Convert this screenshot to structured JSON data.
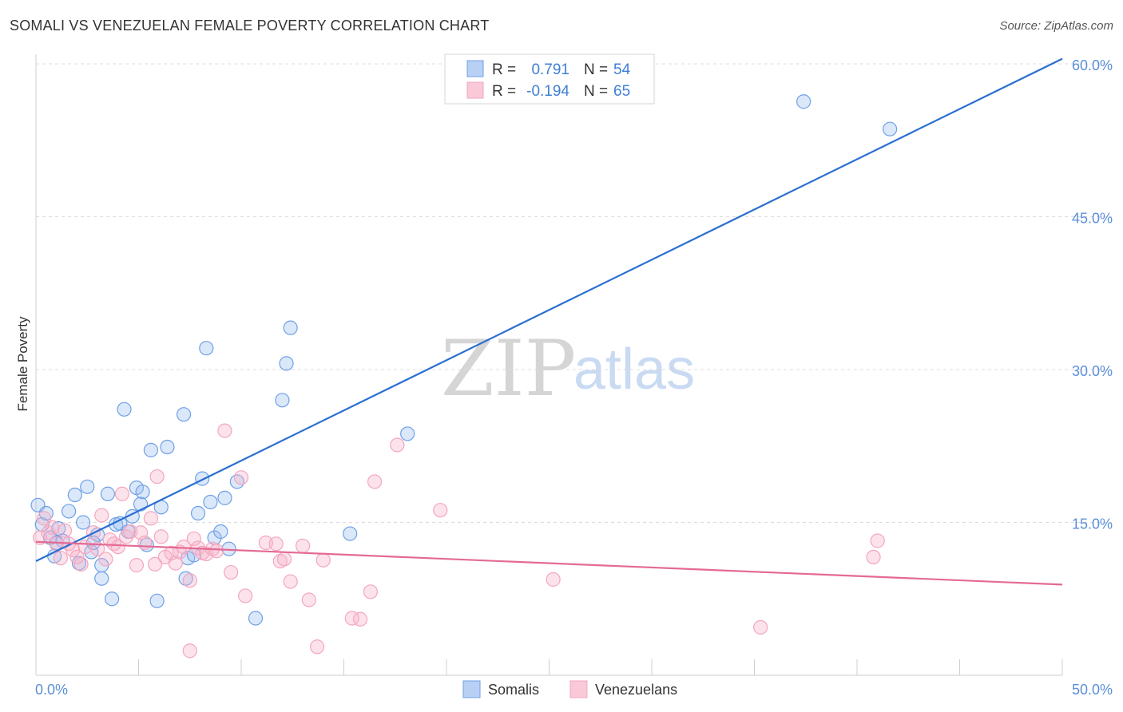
{
  "title": "SOMALI VS VENEZUELAN FEMALE POVERTY CORRELATION CHART",
  "source": "Source: ZipAtlas.com",
  "watermark": {
    "zip": "ZIP",
    "atlas": "atlas"
  },
  "chart_data": {
    "type": "scatter",
    "ylabel": "Female Poverty",
    "xlabel": "",
    "xlim": [
      0,
      50
    ],
    "ylim": [
      0,
      60
    ],
    "x_tick_labels": {
      "min": "0.0%",
      "max": "50.0%"
    },
    "y_tick_labels": [
      "15.0%",
      "30.0%",
      "45.0%",
      "60.0%"
    ],
    "y_tick_values": [
      15,
      30,
      45,
      60
    ],
    "x_minor_ticks": [
      0,
      5,
      10,
      15,
      20,
      25,
      30,
      35,
      40,
      45,
      50
    ],
    "legend": {
      "rows": [
        {
          "r_label": "R =",
          "r_value": "0.791",
          "n_label": "N =",
          "n_value": "54"
        },
        {
          "r_label": "R =",
          "r_value": "-0.194",
          "n_label": "N =",
          "n_value": "65"
        }
      ]
    },
    "series": [
      {
        "name": "Somalis",
        "color": "#6fa0e6",
        "line_color": "#2a6fd1",
        "trend": {
          "x0": 0,
          "y0": 11.2,
          "x1": 50,
          "y1": 60.5
        },
        "points": [
          [
            0.1,
            16.7
          ],
          [
            0.3,
            14.8
          ],
          [
            0.5,
            15.9
          ],
          [
            0.7,
            13.5
          ],
          [
            0.9,
            11.7
          ],
          [
            1.1,
            14.4
          ],
          [
            1.3,
            13.2
          ],
          [
            1.6,
            16.1
          ],
          [
            1.9,
            17.7
          ],
          [
            2.1,
            11.0
          ],
          [
            2.3,
            15.0
          ],
          [
            2.5,
            18.5
          ],
          [
            2.7,
            12.1
          ],
          [
            3.0,
            13.8
          ],
          [
            3.2,
            9.5
          ],
          [
            3.5,
            17.8
          ],
          [
            3.7,
            7.5
          ],
          [
            3.9,
            14.8
          ],
          [
            4.1,
            14.9
          ],
          [
            4.3,
            26.1
          ],
          [
            4.5,
            14.1
          ],
          [
            4.7,
            15.6
          ],
          [
            4.9,
            18.4
          ],
          [
            5.1,
            16.8
          ],
          [
            5.2,
            18.0
          ],
          [
            5.4,
            12.8
          ],
          [
            5.6,
            22.1
          ],
          [
            5.9,
            7.3
          ],
          [
            6.1,
            16.5
          ],
          [
            6.4,
            22.4
          ],
          [
            7.2,
            25.6
          ],
          [
            7.4,
            11.5
          ],
          [
            7.7,
            11.8
          ],
          [
            7.9,
            15.9
          ],
          [
            8.1,
            19.3
          ],
          [
            8.3,
            32.1
          ],
          [
            8.5,
            17.0
          ],
          [
            8.7,
            13.5
          ],
          [
            9.0,
            14.1
          ],
          [
            9.2,
            17.4
          ],
          [
            9.4,
            12.4
          ],
          [
            9.8,
            19.0
          ],
          [
            10.7,
            5.6
          ],
          [
            12.0,
            27.0
          ],
          [
            12.2,
            30.6
          ],
          [
            12.4,
            34.1
          ],
          [
            15.3,
            13.9
          ],
          [
            18.1,
            23.7
          ],
          [
            37.4,
            56.3
          ],
          [
            41.6,
            53.6
          ],
          [
            7.3,
            9.5
          ],
          [
            3.2,
            10.8
          ],
          [
            1.0,
            13.0
          ],
          [
            2.8,
            13.0
          ]
        ]
      },
      {
        "name": "Venezuelans",
        "color": "#f4a6bf",
        "line_color": "#e46a94",
        "trend": {
          "x0": 0,
          "y0": 13.1,
          "x1": 50,
          "y1": 8.9
        },
        "points": [
          [
            0.2,
            13.5
          ],
          [
            0.4,
            15.4
          ],
          [
            0.6,
            14.0
          ],
          [
            0.8,
            14.5
          ],
          [
            1.0,
            12.9
          ],
          [
            1.2,
            11.5
          ],
          [
            1.4,
            14.2
          ],
          [
            1.6,
            12.9
          ],
          [
            1.8,
            12.3
          ],
          [
            2.0,
            11.6
          ],
          [
            2.2,
            10.9
          ],
          [
            2.4,
            12.6
          ],
          [
            2.8,
            14.0
          ],
          [
            3.0,
            12.4
          ],
          [
            3.2,
            15.7
          ],
          [
            3.4,
            11.4
          ],
          [
            3.6,
            13.3
          ],
          [
            3.8,
            12.9
          ],
          [
            4.0,
            12.6
          ],
          [
            4.2,
            17.8
          ],
          [
            4.4,
            13.6
          ],
          [
            4.6,
            14.1
          ],
          [
            4.9,
            10.8
          ],
          [
            5.1,
            14.0
          ],
          [
            5.3,
            13.0
          ],
          [
            5.6,
            15.4
          ],
          [
            5.8,
            10.9
          ],
          [
            5.9,
            19.5
          ],
          [
            6.1,
            13.6
          ],
          [
            6.3,
            11.6
          ],
          [
            6.6,
            12.0
          ],
          [
            6.8,
            11.0
          ],
          [
            7.0,
            12.1
          ],
          [
            7.2,
            12.6
          ],
          [
            7.5,
            9.3
          ],
          [
            7.7,
            13.4
          ],
          [
            7.9,
            12.5
          ],
          [
            8.1,
            12.0
          ],
          [
            8.3,
            11.9
          ],
          [
            8.6,
            12.4
          ],
          [
            8.8,
            12.2
          ],
          [
            9.2,
            24.0
          ],
          [
            9.5,
            10.1
          ],
          [
            10.0,
            19.4
          ],
          [
            10.2,
            7.8
          ],
          [
            11.2,
            13.0
          ],
          [
            11.7,
            12.9
          ],
          [
            11.9,
            11.2
          ],
          [
            12.1,
            11.4
          ],
          [
            12.4,
            9.2
          ],
          [
            13.0,
            12.7
          ],
          [
            13.3,
            7.4
          ],
          [
            13.7,
            2.8
          ],
          [
            14.0,
            11.3
          ],
          [
            15.4,
            5.6
          ],
          [
            15.8,
            5.5
          ],
          [
            16.3,
            8.2
          ],
          [
            16.5,
            19.0
          ],
          [
            17.6,
            22.6
          ],
          [
            19.7,
            16.2
          ],
          [
            25.2,
            9.4
          ],
          [
            35.3,
            4.7
          ],
          [
            40.8,
            11.6
          ],
          [
            41.0,
            13.2
          ],
          [
            7.5,
            2.4
          ]
        ]
      }
    ]
  }
}
